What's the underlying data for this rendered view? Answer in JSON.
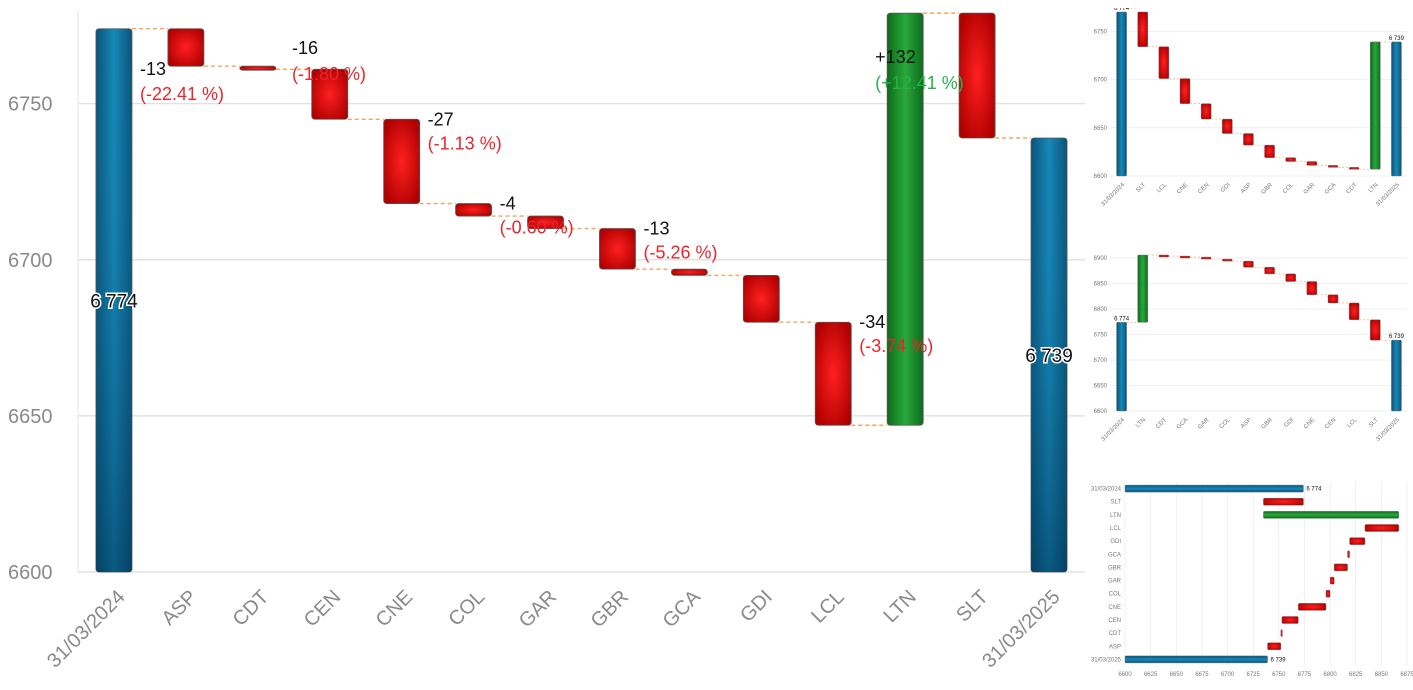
{
  "colors": {
    "total": "#0f6d98",
    "decrease": "#d00000",
    "increase": "#1c8a2a",
    "connector": "#f4a460",
    "negative_text": "#e8262b",
    "positive_text": "#27b04a"
  },
  "chart_data": [
    {
      "type": "waterfall",
      "orientation": "vertical",
      "ylim": [
        6600,
        6780
      ],
      "yticks": [
        6600,
        6650,
        6700,
        6750
      ],
      "grid": true,
      "bars": [
        {
          "category": "31/03/2024",
          "kind": "total",
          "start": 6600,
          "end": 6774,
          "label": "6 774"
        },
        {
          "category": "ASP",
          "kind": "decrease",
          "start": 6774,
          "end": 6762,
          "delta_label": "-13",
          "pct_label": "(-22.41 %)"
        },
        {
          "category": "CDT",
          "kind": "decrease",
          "start": 6762,
          "end": 6761,
          "delta_label": "",
          "pct_label": ""
        },
        {
          "category": "CEN",
          "kind": "decrease",
          "start": 6761,
          "end": 6745,
          "delta_label": "-16",
          "pct_label": "(-1.80 %)"
        },
        {
          "category": "CNE",
          "kind": "decrease",
          "start": 6745,
          "end": 6718,
          "delta_label": "-27",
          "pct_label": "(-1.13 %)"
        },
        {
          "category": "COL",
          "kind": "decrease",
          "start": 6718,
          "end": 6714,
          "delta_label": "-4",
          "pct_label": "(-0.60 %)"
        },
        {
          "category": "GAR",
          "kind": "decrease",
          "start": 6714,
          "end": 6710,
          "delta_label": "",
          "pct_label": ""
        },
        {
          "category": "GBR",
          "kind": "decrease",
          "start": 6710,
          "end": 6697,
          "delta_label": "-13",
          "pct_label": "(-5.26 %)"
        },
        {
          "category": "GCA",
          "kind": "decrease",
          "start": 6697,
          "end": 6695,
          "delta_label": "",
          "pct_label": ""
        },
        {
          "category": "GDI",
          "kind": "decrease",
          "start": 6695,
          "end": 6680,
          "delta_label": "",
          "pct_label": ""
        },
        {
          "category": "LCL",
          "kind": "decrease",
          "start": 6680,
          "end": 6647,
          "delta_label": "-34",
          "pct_label": "(-3.74 %)"
        },
        {
          "category": "LTN",
          "kind": "increase",
          "start": 6647,
          "end": 6779,
          "delta_label": "+132",
          "pct_label": "(+12.41 %)"
        },
        {
          "category": "SLT",
          "kind": "decrease",
          "start": 6779,
          "end": 6739,
          "delta_label": "",
          "pct_label": ""
        },
        {
          "category": "31/03/2025",
          "kind": "total",
          "start": 6600,
          "end": 6739,
          "label": "6 739"
        }
      ]
    },
    {
      "type": "waterfall",
      "orientation": "vertical",
      "ylim": [
        6600,
        6770
      ],
      "yticks": [
        6600,
        6650,
        6700,
        6750
      ],
      "grid": true,
      "bars": [
        {
          "category": "31/03/2024",
          "kind": "total",
          "start": 6600,
          "end": 6774,
          "label": "6 774"
        },
        {
          "category": "SLT",
          "kind": "decrease",
          "start": 6774,
          "end": 6734,
          "label": ""
        },
        {
          "category": "LCL",
          "kind": "decrease",
          "start": 6734,
          "end": 6701,
          "label": ""
        },
        {
          "category": "CNE",
          "kind": "decrease",
          "start": 6701,
          "end": 6675,
          "label": ""
        },
        {
          "category": "CEN",
          "kind": "decrease",
          "start": 6675,
          "end": 6659,
          "label": ""
        },
        {
          "category": "GDI",
          "kind": "decrease",
          "start": 6659,
          "end": 6644,
          "label": ""
        },
        {
          "category": "ASP",
          "kind": "decrease",
          "start": 6644,
          "end": 6632,
          "label": ""
        },
        {
          "category": "GBR",
          "kind": "decrease",
          "start": 6632,
          "end": 6619,
          "label": ""
        },
        {
          "category": "COL",
          "kind": "decrease",
          "start": 6619,
          "end": 6615,
          "label": ""
        },
        {
          "category": "GAR",
          "kind": "decrease",
          "start": 6615,
          "end": 6611,
          "label": ""
        },
        {
          "category": "GCA",
          "kind": "decrease",
          "start": 6611,
          "end": 6609,
          "label": ""
        },
        {
          "category": "CDT",
          "kind": "decrease",
          "start": 6609,
          "end": 6607,
          "label": ""
        },
        {
          "category": "LTN",
          "kind": "increase",
          "start": 6607,
          "end": 6739,
          "label": ""
        },
        {
          "category": "31/03/2025",
          "kind": "total",
          "start": 6600,
          "end": 6739,
          "label": "6 739"
        }
      ]
    },
    {
      "type": "waterfall",
      "orientation": "vertical",
      "ylim": [
        6600,
        6910
      ],
      "yticks": [
        6600,
        6650,
        6700,
        6750,
        6800,
        6850,
        6900
      ],
      "grid": true,
      "bars": [
        {
          "category": "31/03/2024",
          "kind": "total",
          "start": 6600,
          "end": 6774,
          "label": "6 774"
        },
        {
          "category": "LTN",
          "kind": "increase",
          "start": 6774,
          "end": 6906,
          "label": ""
        },
        {
          "category": "CDT",
          "kind": "decrease",
          "start": 6906,
          "end": 6904,
          "label": ""
        },
        {
          "category": "GCA",
          "kind": "decrease",
          "start": 6904,
          "end": 6902,
          "label": ""
        },
        {
          "category": "GAR",
          "kind": "decrease",
          "start": 6902,
          "end": 6898,
          "label": ""
        },
        {
          "category": "COL",
          "kind": "decrease",
          "start": 6898,
          "end": 6894,
          "label": ""
        },
        {
          "category": "ASP",
          "kind": "decrease",
          "start": 6894,
          "end": 6882,
          "label": ""
        },
        {
          "category": "GBR",
          "kind": "decrease",
          "start": 6882,
          "end": 6869,
          "label": ""
        },
        {
          "category": "GDI",
          "kind": "decrease",
          "start": 6869,
          "end": 6854,
          "label": ""
        },
        {
          "category": "CNE",
          "kind": "decrease",
          "start": 6854,
          "end": 6828,
          "label": ""
        },
        {
          "category": "CEN",
          "kind": "decrease",
          "start": 6828,
          "end": 6812,
          "label": ""
        },
        {
          "category": "LCL",
          "kind": "decrease",
          "start": 6812,
          "end": 6779,
          "label": ""
        },
        {
          "category": "SLT",
          "kind": "decrease",
          "start": 6779,
          "end": 6739,
          "label": ""
        },
        {
          "category": "31/03/2025",
          "kind": "total",
          "start": 6600,
          "end": 6739,
          "label": "6 739"
        }
      ]
    },
    {
      "type": "waterfall",
      "orientation": "horizontal",
      "xlim": [
        6600,
        6875
      ],
      "xticks": [
        6600,
        6625,
        6650,
        6675,
        6700,
        6725,
        6750,
        6775,
        6800,
        6825,
        6850,
        6875
      ],
      "grid": true,
      "bars": [
        {
          "category": "31/03/2024",
          "kind": "total",
          "start": 6600,
          "end": 6774,
          "label": "6 774"
        },
        {
          "category": "SLT",
          "kind": "decrease",
          "start": 6774,
          "end": 6735,
          "label": ""
        },
        {
          "category": "LTN",
          "kind": "increase",
          "start": 6735,
          "end": 6867,
          "label": ""
        },
        {
          "category": "LCL",
          "kind": "decrease",
          "start": 6867,
          "end": 6834,
          "label": ""
        },
        {
          "category": "GDI",
          "kind": "decrease",
          "start": 6834,
          "end": 6819,
          "label": ""
        },
        {
          "category": "GCA",
          "kind": "decrease",
          "start": 6819,
          "end": 6817,
          "label": ""
        },
        {
          "category": "GBR",
          "kind": "decrease",
          "start": 6817,
          "end": 6804,
          "label": ""
        },
        {
          "category": "GAR",
          "kind": "decrease",
          "start": 6804,
          "end": 6800,
          "label": ""
        },
        {
          "category": "COL",
          "kind": "decrease",
          "start": 6800,
          "end": 6796,
          "label": ""
        },
        {
          "category": "CNE",
          "kind": "decrease",
          "start": 6796,
          "end": 6769,
          "label": ""
        },
        {
          "category": "CEN",
          "kind": "decrease",
          "start": 6769,
          "end": 6753,
          "label": ""
        },
        {
          "category": "CDT",
          "kind": "decrease",
          "start": 6753,
          "end": 6752,
          "label": ""
        },
        {
          "category": "ASP",
          "kind": "decrease",
          "start": 6752,
          "end": 6739,
          "label": ""
        },
        {
          "category": "31/03/2025",
          "kind": "total",
          "start": 6600,
          "end": 6739,
          "label": "6 739"
        }
      ]
    }
  ]
}
